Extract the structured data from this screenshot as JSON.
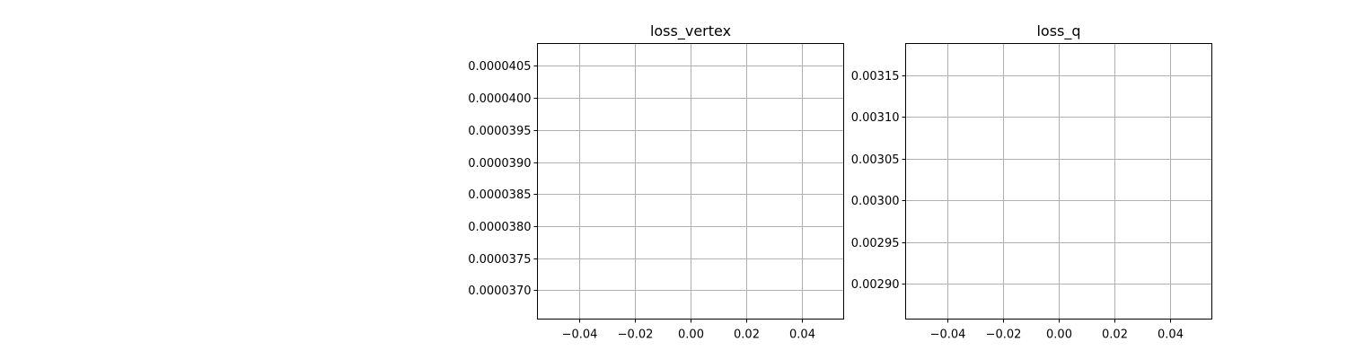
{
  "chart_data": [
    {
      "type": "line",
      "title": "loss_vertex",
      "xlabel": "",
      "ylabel": "",
      "grid": true,
      "legend": "none",
      "xlim": [
        -0.055,
        0.055
      ],
      "ylim": [
        3.655e-05,
        4.085e-05
      ],
      "x_ticks": [
        -0.04,
        -0.02,
        0.0,
        0.02,
        0.04
      ],
      "x_tick_labels": [
        "−0.04",
        "−0.02",
        "0.00",
        "0.02",
        "0.04"
      ],
      "y_ticks": [
        3.7e-05,
        3.75e-05,
        3.8e-05,
        3.85e-05,
        3.9e-05,
        3.95e-05,
        4e-05,
        4.05e-05
      ],
      "y_tick_labels": [
        "0.0000370",
        "0.0000375",
        "0.0000380",
        "0.0000385",
        "0.0000390",
        "0.0000395",
        "0.0000400",
        "0.0000405"
      ],
      "series": []
    },
    {
      "type": "line",
      "title": "loss_q",
      "xlabel": "",
      "ylabel": "",
      "grid": true,
      "legend": "none",
      "xlim": [
        -0.055,
        0.055
      ],
      "ylim": [
        0.0028578,
        0.0031877
      ],
      "x_ticks": [
        -0.04,
        -0.02,
        0.0,
        0.02,
        0.04
      ],
      "x_tick_labels": [
        "−0.04",
        "−0.02",
        "0.00",
        "0.02",
        "0.04"
      ],
      "y_ticks": [
        0.0029,
        0.00295,
        0.003,
        0.00305,
        0.0031,
        0.00315
      ],
      "y_tick_labels": [
        "0.00290",
        "0.00295",
        "0.00300",
        "0.00305",
        "0.00310",
        "0.00315"
      ],
      "series": []
    }
  ],
  "colors": {
    "background": "#ffffff",
    "grid": "#b0b0b0",
    "axis": "#000000",
    "text": "#000000"
  }
}
